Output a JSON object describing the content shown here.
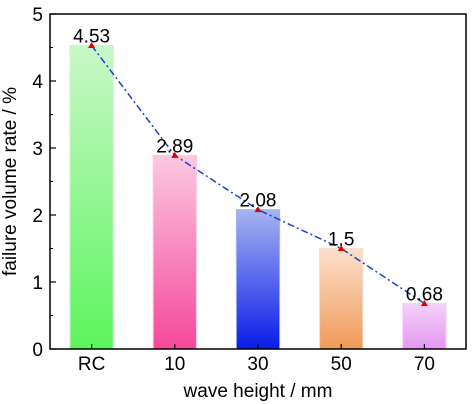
{
  "chart_data": {
    "type": "bar",
    "title": "",
    "xlabel": "wave height / mm",
    "ylabel": "failure volume rate / %",
    "categories": [
      "RC",
      "10",
      "30",
      "50",
      "70"
    ],
    "values": [
      4.53,
      2.89,
      2.08,
      1.5,
      0.68
    ],
    "value_labels": [
      "4.53",
      "2.89",
      "2.08",
      "1.5",
      "0.68"
    ],
    "ylim": [
      0,
      5
    ],
    "yticks": [
      "0",
      "1",
      "2",
      "3",
      "4",
      "5"
    ],
    "grid": false,
    "overlay_line": {
      "style": "dash-dot",
      "color": "#1a3fd6",
      "marker_color": "#e00000"
    },
    "bar_colors": [
      {
        "top": "#c9f7c9",
        "bottom": "#5cf55c"
      },
      {
        "top": "#fcc8e2",
        "bottom": "#f5489a"
      },
      {
        "top": "#a7b4f0",
        "bottom": "#0a1be8"
      },
      {
        "top": "#fbe0cc",
        "bottom": "#f09a58"
      },
      {
        "top": "#f3d2f8",
        "bottom": "#e597f2"
      }
    ]
  }
}
